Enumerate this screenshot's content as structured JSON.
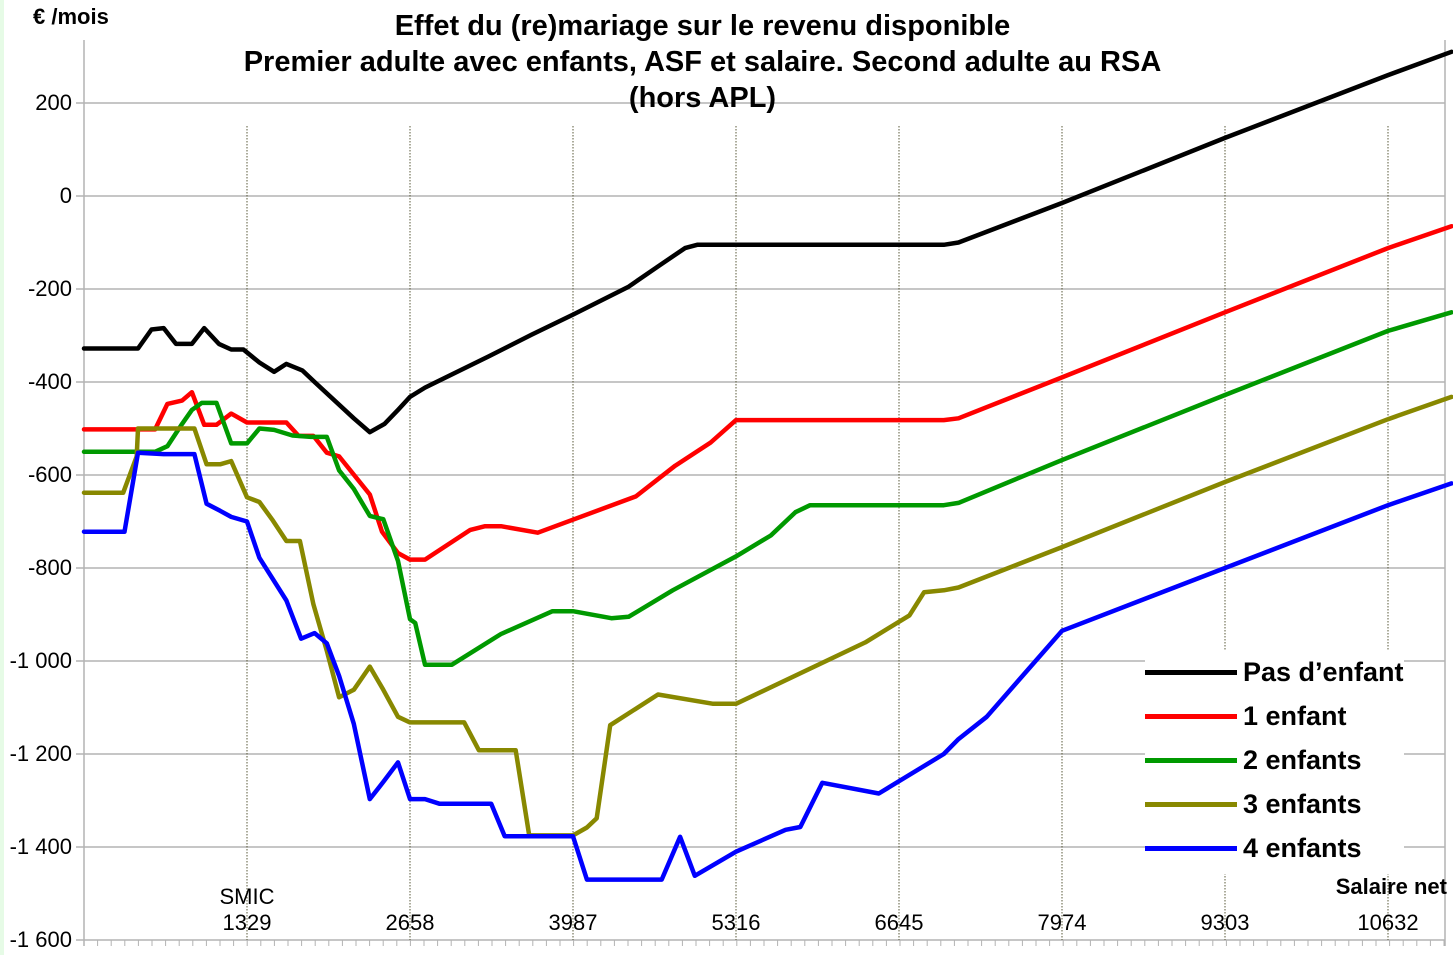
{
  "chart_data": {
    "type": "line",
    "title": "Effet du (re)mariage sur le revenu disponible",
    "subtitle": [
      "Premier adulte avec enfants, ASF et salaire.  Second adulte au RSA",
      "(hors APL)"
    ],
    "xlabel": "Salaire net",
    "ylabel": "€ /mois",
    "xlim": [
      0,
      11150
    ],
    "ylim": [
      -1600,
      300
    ],
    "x_ticks": [
      1329,
      2658,
      3987,
      5316,
      6645,
      7974,
      9303,
      10632
    ],
    "x_tick_labels": [
      "1329",
      "2658",
      "3987",
      "5316",
      "6645",
      "7974",
      "9303",
      "10632"
    ],
    "x_annotation": {
      "x": 1329,
      "label": "SMIC"
    },
    "y_ticks": [
      200,
      0,
      -200,
      -400,
      -600,
      -800,
      -1000,
      -1200,
      -1400,
      -1600
    ],
    "y_tick_labels": [
      "200",
      "0",
      "-200",
      "-400",
      "-600",
      "-800",
      "-1 000",
      "-1 200",
      "-1 400",
      "-1 600"
    ],
    "grid": {
      "horizontal": true,
      "vertical_dotted_at_x_ticks": true
    },
    "legend_position": "lower-right",
    "series": [
      {
        "name": "Pas d’enfant",
        "color": "#000000",
        "points": [
          [
            0,
            -328
          ],
          [
            440,
            -328
          ],
          [
            550,
            -287
          ],
          [
            650,
            -284
          ],
          [
            750,
            -318
          ],
          [
            880,
            -318
          ],
          [
            980,
            -284
          ],
          [
            1100,
            -318
          ],
          [
            1200,
            -330
          ],
          [
            1300,
            -330
          ],
          [
            1430,
            -358
          ],
          [
            1550,
            -378
          ],
          [
            1650,
            -361
          ],
          [
            1780,
            -375
          ],
          [
            1900,
            -405
          ],
          [
            2200,
            -478
          ],
          [
            2330,
            -508
          ],
          [
            2450,
            -490
          ],
          [
            2560,
            -460
          ],
          [
            2658,
            -432
          ],
          [
            2780,
            -412
          ],
          [
            3300,
            -345
          ],
          [
            3650,
            -298
          ],
          [
            3987,
            -255
          ],
          [
            4440,
            -195
          ],
          [
            4700,
            -148
          ],
          [
            4900,
            -112
          ],
          [
            5000,
            -105
          ],
          [
            5316,
            -105
          ],
          [
            6645,
            -105
          ],
          [
            7010,
            -105
          ],
          [
            7130,
            -100
          ],
          [
            7974,
            -15
          ],
          [
            9303,
            125
          ],
          [
            10632,
            260
          ],
          [
            11150,
            310
          ]
        ]
      },
      {
        "name": "1 enfant",
        "color": "#ff0000",
        "points": [
          [
            0,
            -502
          ],
          [
            580,
            -502
          ],
          [
            680,
            -447
          ],
          [
            800,
            -440
          ],
          [
            880,
            -422
          ],
          [
            980,
            -492
          ],
          [
            1080,
            -492
          ],
          [
            1200,
            -468
          ],
          [
            1329,
            -487
          ],
          [
            1430,
            -487
          ],
          [
            1650,
            -487
          ],
          [
            1750,
            -516
          ],
          [
            1870,
            -516
          ],
          [
            1980,
            -552
          ],
          [
            2080,
            -560
          ],
          [
            2330,
            -642
          ],
          [
            2430,
            -722
          ],
          [
            2560,
            -768
          ],
          [
            2658,
            -782
          ],
          [
            2780,
            -782
          ],
          [
            3150,
            -718
          ],
          [
            3270,
            -710
          ],
          [
            3400,
            -710
          ],
          [
            3700,
            -724
          ],
          [
            4500,
            -646
          ],
          [
            4820,
            -580
          ],
          [
            5110,
            -530
          ],
          [
            5316,
            -482
          ],
          [
            5480,
            -482
          ],
          [
            6645,
            -482
          ],
          [
            7010,
            -482
          ],
          [
            7130,
            -478
          ],
          [
            7974,
            -390
          ],
          [
            9303,
            -250
          ],
          [
            10632,
            -112
          ],
          [
            11150,
            -65
          ]
        ]
      },
      {
        "name": "2 enfants",
        "color": "#009900",
        "points": [
          [
            0,
            -550
          ],
          [
            480,
            -550
          ],
          [
            580,
            -550
          ],
          [
            680,
            -538
          ],
          [
            800,
            -490
          ],
          [
            880,
            -460
          ],
          [
            960,
            -445
          ],
          [
            1080,
            -445
          ],
          [
            1200,
            -532
          ],
          [
            1329,
            -532
          ],
          [
            1430,
            -500
          ],
          [
            1550,
            -503
          ],
          [
            1700,
            -515
          ],
          [
            1850,
            -518
          ],
          [
            1980,
            -518
          ],
          [
            2080,
            -590
          ],
          [
            2200,
            -630
          ],
          [
            2330,
            -688
          ],
          [
            2440,
            -695
          ],
          [
            2560,
            -785
          ],
          [
            2658,
            -910
          ],
          [
            2700,
            -918
          ],
          [
            2780,
            -1008
          ],
          [
            3000,
            -1008
          ],
          [
            3400,
            -942
          ],
          [
            3820,
            -893
          ],
          [
            3987,
            -893
          ],
          [
            4300,
            -908
          ],
          [
            4440,
            -905
          ],
          [
            4800,
            -848
          ],
          [
            5316,
            -775
          ],
          [
            5600,
            -730
          ],
          [
            5800,
            -680
          ],
          [
            5920,
            -665
          ],
          [
            6645,
            -665
          ],
          [
            7010,
            -665
          ],
          [
            7130,
            -660
          ],
          [
            7974,
            -568
          ],
          [
            9303,
            -428
          ],
          [
            10632,
            -290
          ],
          [
            11150,
            -250
          ]
        ]
      },
      {
        "name": "3 enfants",
        "color": "#888800",
        "points": [
          [
            0,
            -638
          ],
          [
            220,
            -638
          ],
          [
            320,
            -638
          ],
          [
            430,
            -560
          ],
          [
            440,
            -500
          ],
          [
            800,
            -500
          ],
          [
            900,
            -500
          ],
          [
            1000,
            -577
          ],
          [
            1110,
            -577
          ],
          [
            1200,
            -570
          ],
          [
            1329,
            -648
          ],
          [
            1430,
            -658
          ],
          [
            1540,
            -698
          ],
          [
            1650,
            -742
          ],
          [
            1760,
            -742
          ],
          [
            1870,
            -878
          ],
          [
            1980,
            -978
          ],
          [
            2080,
            -1078
          ],
          [
            2200,
            -1062
          ],
          [
            2330,
            -1012
          ],
          [
            2440,
            -1062
          ],
          [
            2560,
            -1120
          ],
          [
            2658,
            -1132
          ],
          [
            2780,
            -1132
          ],
          [
            3000,
            -1132
          ],
          [
            3100,
            -1132
          ],
          [
            3220,
            -1192
          ],
          [
            3520,
            -1192
          ],
          [
            3630,
            -1375
          ],
          [
            3987,
            -1375
          ],
          [
            4100,
            -1358
          ],
          [
            4180,
            -1338
          ],
          [
            4290,
            -1138
          ],
          [
            4680,
            -1072
          ],
          [
            5130,
            -1092
          ],
          [
            5316,
            -1092
          ],
          [
            6370,
            -960
          ],
          [
            6730,
            -902
          ],
          [
            6850,
            -852
          ],
          [
            7010,
            -848
          ],
          [
            7130,
            -842
          ],
          [
            7974,
            -755
          ],
          [
            9303,
            -615
          ],
          [
            10632,
            -480
          ],
          [
            11150,
            -432
          ]
        ]
      },
      {
        "name": "4 enfants",
        "color": "#0000ff",
        "points": [
          [
            0,
            -722
          ],
          [
            220,
            -722
          ],
          [
            330,
            -722
          ],
          [
            440,
            -552
          ],
          [
            650,
            -555
          ],
          [
            760,
            -555
          ],
          [
            900,
            -555
          ],
          [
            1000,
            -662
          ],
          [
            1110,
            -677
          ],
          [
            1200,
            -690
          ],
          [
            1329,
            -700
          ],
          [
            1430,
            -778
          ],
          [
            1650,
            -870
          ],
          [
            1770,
            -952
          ],
          [
            1880,
            -940
          ],
          [
            1980,
            -962
          ],
          [
            2080,
            -1032
          ],
          [
            2200,
            -1135
          ],
          [
            2330,
            -1297
          ],
          [
            2440,
            -1260
          ],
          [
            2560,
            -1218
          ],
          [
            2658,
            -1297
          ],
          [
            2780,
            -1297
          ],
          [
            2900,
            -1307
          ],
          [
            3000,
            -1307
          ],
          [
            3100,
            -1307
          ],
          [
            3320,
            -1307
          ],
          [
            3430,
            -1377
          ],
          [
            3520,
            -1377
          ],
          [
            3987,
            -1377
          ],
          [
            4100,
            -1470
          ],
          [
            4550,
            -1470
          ],
          [
            4710,
            -1470
          ],
          [
            4860,
            -1378
          ],
          [
            4980,
            -1462
          ],
          [
            5316,
            -1410
          ],
          [
            5720,
            -1363
          ],
          [
            5840,
            -1357
          ],
          [
            6020,
            -1262
          ],
          [
            6480,
            -1285
          ],
          [
            7010,
            -1200
          ],
          [
            7130,
            -1168
          ],
          [
            7360,
            -1120
          ],
          [
            7974,
            -935
          ],
          [
            9303,
            -800
          ],
          [
            10632,
            -665
          ],
          [
            11150,
            -618
          ]
        ]
      }
    ]
  },
  "legend": {
    "items": [
      {
        "label": "Pas d’enfant",
        "color": "#000000"
      },
      {
        "label": "1 enfant",
        "color": "#ff0000"
      },
      {
        "label": "2 enfants",
        "color": "#009900"
      },
      {
        "label": "3 enfants",
        "color": "#888800"
      },
      {
        "label": "4 enfants",
        "color": "#0000ff"
      }
    ]
  },
  "title_lines": [
    "Effet du (re)mariage sur le revenu disponible",
    "Premier adulte avec enfants, ASF et salaire.  Second adulte au RSA",
    "(hors APL)"
  ],
  "axis": {
    "y_unit": "€ /mois",
    "x_name": "Salaire net",
    "smic_label": "SMIC"
  }
}
